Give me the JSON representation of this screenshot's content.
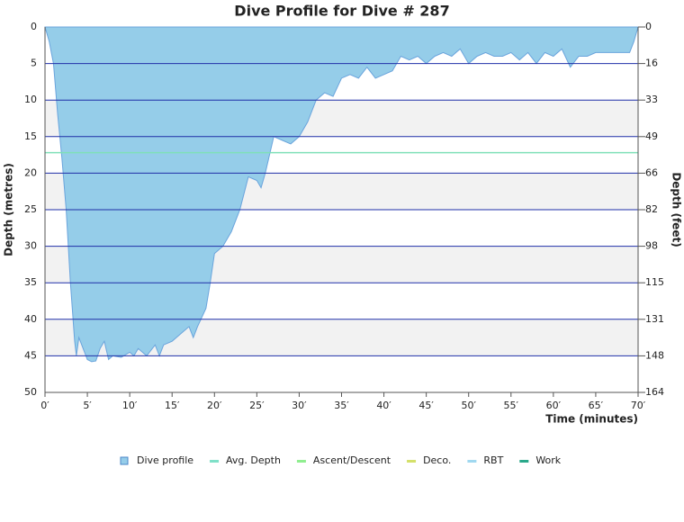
{
  "chart_data": {
    "type": "area",
    "title": "Dive Profile for Dive # 287",
    "x_label": "Time (minutes)",
    "y_label": "Depth (metres)",
    "y2_label": "Depth (feet)",
    "x": [
      0,
      0.5,
      1,
      1.5,
      2,
      2.5,
      3,
      3.5,
      3.7,
      4,
      4.5,
      5,
      5.5,
      6,
      6.5,
      7,
      7.5,
      8,
      9,
      10,
      10.5,
      11,
      12,
      13,
      13.5,
      14,
      15,
      16,
      17,
      17.5,
      18,
      19,
      19.5,
      20,
      21,
      22,
      23,
      24,
      25,
      25.5,
      26,
      27,
      28,
      29,
      30,
      31,
      32,
      33,
      34,
      35,
      36,
      37,
      38,
      39,
      40,
      41,
      42,
      43,
      44,
      45,
      46,
      47,
      48,
      49,
      50,
      51,
      52,
      53,
      54,
      55,
      56,
      57,
      58,
      59,
      60,
      61,
      62,
      63,
      64,
      65,
      66,
      67,
      68,
      69,
      69.5,
      70
    ],
    "values": [
      0,
      2,
      5,
      12,
      18,
      25,
      35,
      43,
      45,
      42.5,
      44,
      45.5,
      45.8,
      45.7,
      44,
      43,
      45.5,
      45,
      45.2,
      44.5,
      45,
      44,
      45,
      43.5,
      45,
      43.5,
      43,
      42,
      41,
      42.5,
      41,
      38.5,
      35,
      31,
      30,
      28,
      25,
      20.5,
      21,
      22,
      20,
      15,
      15.5,
      16,
      15,
      13,
      10,
      9,
      9.5,
      7,
      6.5,
      7,
      5.5,
      7,
      6.5,
      6,
      4,
      4.5,
      4,
      5,
      4,
      3.5,
      4,
      3,
      5,
      4,
      3.5,
      4,
      4,
      3.5,
      4.5,
      3.5,
      5,
      3.5,
      4,
      3,
      5.5,
      4,
      4,
      3.5,
      3.5,
      3.5,
      3.5,
      3.5,
      2,
      0
    ],
    "color": "#95cde9",
    "avg_depth": 17.2,
    "avg_color": "#7fe0b8",
    "xlim": [
      0,
      70
    ],
    "xticks": [
      {
        "value": 0,
        "label": "0′"
      },
      {
        "value": 5,
        "label": "5′"
      },
      {
        "value": 10,
        "label": "10′"
      },
      {
        "value": 15,
        "label": "15′"
      },
      {
        "value": 20,
        "label": "20′"
      },
      {
        "value": 25,
        "label": "25′"
      },
      {
        "value": 30,
        "label": "30′"
      },
      {
        "value": 35,
        "label": "35′"
      },
      {
        "value": 40,
        "label": "40′"
      },
      {
        "value": 45,
        "label": "45′"
      },
      {
        "value": 50,
        "label": "50′"
      },
      {
        "value": 55,
        "label": "55′"
      },
      {
        "value": 60,
        "label": "60′"
      },
      {
        "value": 65,
        "label": "65′"
      },
      {
        "value": 70,
        "label": "70′"
      }
    ],
    "ylim": [
      0,
      50
    ],
    "y_reversed": true,
    "yticks": [
      0,
      5,
      10,
      15,
      20,
      25,
      30,
      35,
      40,
      45,
      50
    ],
    "y2lim": [
      0,
      164.04
    ],
    "y2ticks": [
      0,
      {
        "value": 16.404,
        "label": "16"
      },
      {
        "value": 32.808,
        "label": "33"
      },
      {
        "value": 49.213,
        "label": "49"
      },
      {
        "value": 65.617,
        "label": "66"
      },
      {
        "value": 82.021,
        "label": "82"
      },
      {
        "value": 98.425,
        "label": "98"
      },
      {
        "value": 114.83,
        "label": "115"
      },
      {
        "value": 131.23,
        "label": "131"
      },
      {
        "value": 147.64,
        "label": "148"
      },
      {
        "value": 164.04,
        "label": "164"
      }
    ],
    "grid": true,
    "grid_color": "#1f2fa8",
    "legend_position": "bottom",
    "legend": [
      {
        "name": "Dive profile",
        "color": "#95cde9"
      },
      {
        "name": "Avg. Depth",
        "color": "#7fe0c8"
      },
      {
        "name": "Ascent/Descent",
        "color": "#90ee90"
      },
      {
        "name": "Deco.",
        "color": "#d4e06a"
      },
      {
        "name": "RBT",
        "color": "#a0d8f0"
      },
      {
        "name": "Work",
        "color": "#2aa88a"
      }
    ]
  }
}
